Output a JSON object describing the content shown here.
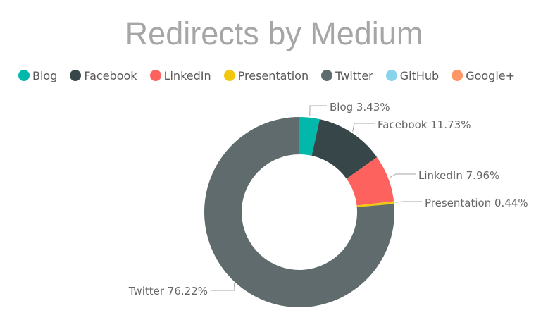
{
  "chart_data": {
    "type": "pie",
    "variant": "donut",
    "title": "Redirects by Medium",
    "legend_position": "top-left",
    "series": [
      {
        "name": "Blog",
        "value": 3.43,
        "color": "#01B8AA"
      },
      {
        "name": "Facebook",
        "value": 11.73,
        "color": "#374649"
      },
      {
        "name": "LinkedIn",
        "value": 7.96,
        "color": "#FD625E"
      },
      {
        "name": "Presentation",
        "value": 0.44,
        "color": "#F2C80F"
      },
      {
        "name": "Twitter",
        "value": 76.22,
        "color": "#5F6B6D"
      },
      {
        "name": "GitHub",
        "value": 0,
        "color": "#8AD4EB"
      },
      {
        "name": "Google+",
        "value": 0,
        "color": "#FE9666"
      }
    ],
    "data_labels": [
      "Blog 3.43%",
      "Facebook 11.73%",
      "LinkedIn 7.96%",
      "Presentation 0.44%",
      "Twitter 76.22%"
    ]
  }
}
